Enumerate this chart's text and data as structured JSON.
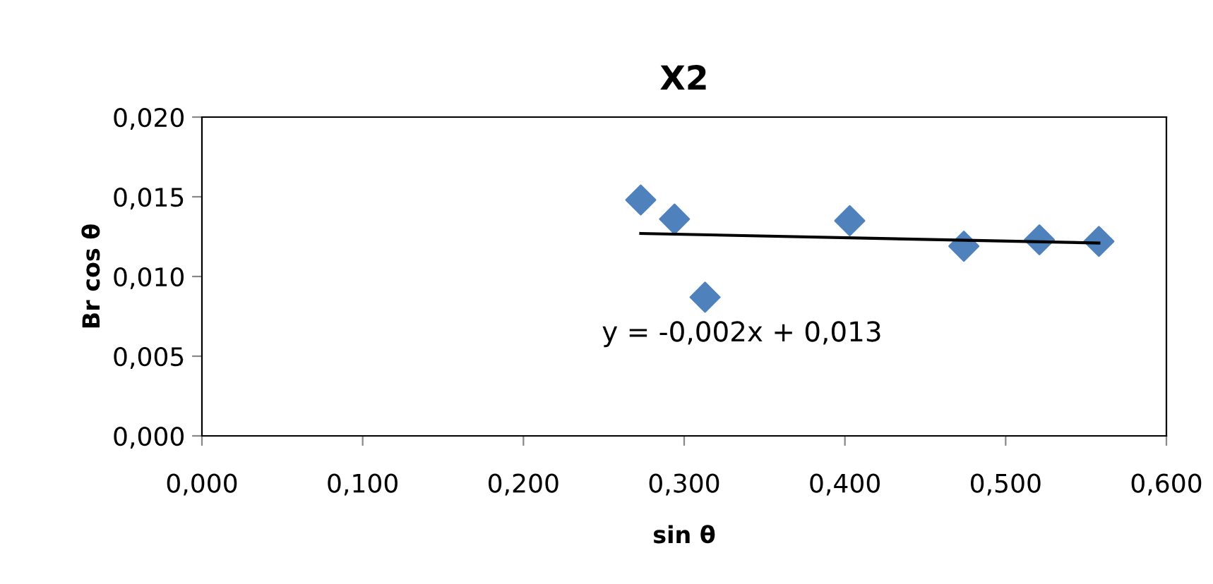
{
  "chart_data": {
    "type": "scatter",
    "title": "X2",
    "xlabel": "sin θ",
    "ylabel": "Br cos θ",
    "series": [
      {
        "color": "#4f81bd",
        "marker": "diamond",
        "x": [
          0.273,
          0.294,
          0.313,
          0.403,
          0.474,
          0.521,
          0.558
        ],
        "values": [
          0.0148,
          0.0136,
          0.0087,
          0.0135,
          0.0119,
          0.0123,
          0.0122
        ]
      },
      {
        "type": "line",
        "color": "#000000",
        "marker": "none",
        "line_style": "solid",
        "x": [
          0.273,
          0.558
        ],
        "values": [
          0.0127,
          0.0121
        ]
      }
    ],
    "annotations": [
      "y = -0,002x + 0,013"
    ],
    "xlim": [
      0,
      0.6
    ],
    "xticks": [
      {
        "value": 0,
        "label": "0,000"
      },
      {
        "value": 0.1,
        "label": "0,100"
      },
      {
        "value": 0.2,
        "label": "0,200"
      },
      {
        "value": 0.3,
        "label": "0,300"
      },
      {
        "value": 0.4,
        "label": "0,400"
      },
      {
        "value": 0.5,
        "label": "0,500"
      },
      {
        "value": 0.6,
        "label": "0,600"
      }
    ],
    "ylim": [
      0,
      0.02
    ],
    "yticks": [
      {
        "value": 0,
        "label": "0,000"
      },
      {
        "value": 0.005,
        "label": "0,005"
      },
      {
        "value": 0.01,
        "label": "0,010"
      },
      {
        "value": 0.015,
        "label": "0,015"
      },
      {
        "value": 0.02,
        "label": "0,020"
      }
    ],
    "grid": false,
    "legend": false
  }
}
